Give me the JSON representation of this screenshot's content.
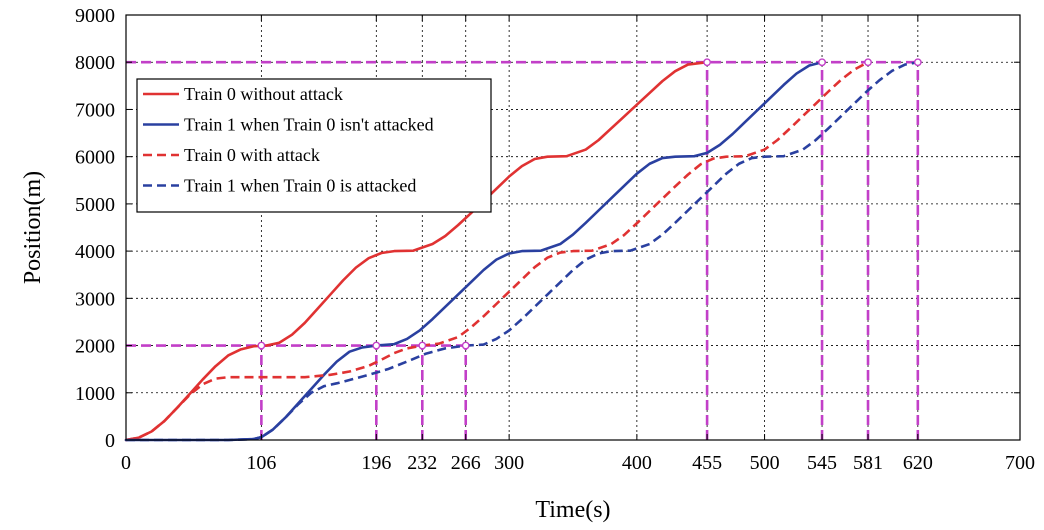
{
  "chart_data": {
    "type": "line",
    "xlabel": "Time(s)",
    "ylabel": "Position(m)",
    "xlim": [
      0,
      700
    ],
    "ylim": [
      0,
      9000
    ],
    "xticks": [
      0,
      106,
      196,
      232,
      266,
      300,
      400,
      455,
      500,
      545,
      581,
      620,
      700
    ],
    "yticks": [
      0,
      1000,
      2000,
      3000,
      4000,
      5000,
      6000,
      7000,
      8000,
      9000
    ],
    "grid_vertical": [
      106,
      196,
      232,
      266,
      300,
      400,
      455,
      500,
      545,
      581,
      620
    ],
    "grid_horizontal": [
      1000,
      2000,
      3000,
      4000,
      5000,
      6000,
      7000,
      8000
    ],
    "legend_position": "top-left",
    "reference_lines": {
      "color": "#c23fc8",
      "horizontal": [
        {
          "y": 2000,
          "x_to": 266
        },
        {
          "y": 8000,
          "x_to": 620
        }
      ],
      "vertical": [
        {
          "x": 106,
          "y_to": 2000
        },
        {
          "x": 196,
          "y_to": 2000
        },
        {
          "x": 232,
          "y_to": 2000
        },
        {
          "x": 266,
          "y_to": 2000
        },
        {
          "x": 455,
          "y_to": 8000
        },
        {
          "x": 545,
          "y_to": 8000
        },
        {
          "x": 581,
          "y_to": 8000
        },
        {
          "x": 620,
          "y_to": 8000
        }
      ],
      "markers": [
        [
          106,
          2000
        ],
        [
          196,
          2000
        ],
        [
          232,
          2000
        ],
        [
          266,
          2000
        ],
        [
          455,
          8000
        ],
        [
          545,
          8000
        ],
        [
          581,
          8000
        ],
        [
          620,
          8000
        ]
      ]
    },
    "series": [
      {
        "name": "Train 0 without attack",
        "color": "#e03232",
        "dash": "solid",
        "points": [
          [
            0,
            0
          ],
          [
            10,
            50
          ],
          [
            20,
            180
          ],
          [
            30,
            400
          ],
          [
            40,
            680
          ],
          [
            50,
            980
          ],
          [
            60,
            1280
          ],
          [
            70,
            1560
          ],
          [
            80,
            1790
          ],
          [
            90,
            1920
          ],
          [
            100,
            1985
          ],
          [
            110,
            2000
          ],
          [
            120,
            2060
          ],
          [
            130,
            2230
          ],
          [
            140,
            2480
          ],
          [
            150,
            2780
          ],
          [
            160,
            3080
          ],
          [
            170,
            3380
          ],
          [
            180,
            3650
          ],
          [
            190,
            3850
          ],
          [
            200,
            3960
          ],
          [
            210,
            4000
          ],
          [
            225,
            4010
          ],
          [
            240,
            4150
          ],
          [
            250,
            4320
          ],
          [
            260,
            4550
          ],
          [
            270,
            4800
          ],
          [
            280,
            5060
          ],
          [
            290,
            5320
          ],
          [
            300,
            5580
          ],
          [
            310,
            5800
          ],
          [
            320,
            5950
          ],
          [
            330,
            6000
          ],
          [
            345,
            6010
          ],
          [
            360,
            6150
          ],
          [
            370,
            6350
          ],
          [
            380,
            6600
          ],
          [
            390,
            6850
          ],
          [
            400,
            7100
          ],
          [
            410,
            7350
          ],
          [
            420,
            7600
          ],
          [
            430,
            7810
          ],
          [
            440,
            7950
          ],
          [
            455,
            8000
          ]
        ]
      },
      {
        "name": "Train 1 when Train 0 isn't attacked",
        "color": "#2a40a0",
        "dash": "solid",
        "points": [
          [
            0,
            0
          ],
          [
            80,
            0
          ],
          [
            100,
            20
          ],
          [
            106,
            60
          ],
          [
            115,
            220
          ],
          [
            125,
            480
          ],
          [
            135,
            780
          ],
          [
            145,
            1080
          ],
          [
            155,
            1380
          ],
          [
            165,
            1660
          ],
          [
            175,
            1870
          ],
          [
            185,
            1960
          ],
          [
            196,
            2000
          ],
          [
            210,
            2030
          ],
          [
            220,
            2140
          ],
          [
            230,
            2320
          ],
          [
            240,
            2560
          ],
          [
            250,
            2820
          ],
          [
            260,
            3080
          ],
          [
            270,
            3340
          ],
          [
            280,
            3600
          ],
          [
            290,
            3820
          ],
          [
            300,
            3950
          ],
          [
            310,
            4000
          ],
          [
            325,
            4010
          ],
          [
            340,
            4150
          ],
          [
            350,
            4350
          ],
          [
            360,
            4600
          ],
          [
            370,
            4860
          ],
          [
            380,
            5120
          ],
          [
            390,
            5380
          ],
          [
            400,
            5640
          ],
          [
            410,
            5850
          ],
          [
            420,
            5970
          ],
          [
            430,
            6000
          ],
          [
            445,
            6010
          ],
          [
            455,
            6080
          ],
          [
            465,
            6250
          ],
          [
            475,
            6480
          ],
          [
            485,
            6740
          ],
          [
            495,
            7000
          ],
          [
            505,
            7260
          ],
          [
            515,
            7520
          ],
          [
            525,
            7760
          ],
          [
            535,
            7930
          ],
          [
            545,
            8000
          ]
        ]
      },
      {
        "name": "Train 0 with attack",
        "color": "#e03232",
        "dash": "dashed",
        "points": [
          [
            0,
            0
          ],
          [
            10,
            50
          ],
          [
            20,
            180
          ],
          [
            30,
            400
          ],
          [
            40,
            680
          ],
          [
            50,
            960
          ],
          [
            60,
            1180
          ],
          [
            70,
            1300
          ],
          [
            80,
            1330
          ],
          [
            140,
            1330
          ],
          [
            160,
            1380
          ],
          [
            175,
            1450
          ],
          [
            190,
            1570
          ],
          [
            200,
            1700
          ],
          [
            210,
            1840
          ],
          [
            220,
            1940
          ],
          [
            232,
            2000
          ],
          [
            245,
            2040
          ],
          [
            260,
            2180
          ],
          [
            270,
            2380
          ],
          [
            280,
            2620
          ],
          [
            290,
            2880
          ],
          [
            300,
            3140
          ],
          [
            310,
            3400
          ],
          [
            320,
            3660
          ],
          [
            330,
            3860
          ],
          [
            340,
            3970
          ],
          [
            350,
            4000
          ],
          [
            365,
            4010
          ],
          [
            380,
            4150
          ],
          [
            390,
            4340
          ],
          [
            400,
            4590
          ],
          [
            410,
            4850
          ],
          [
            420,
            5110
          ],
          [
            430,
            5370
          ],
          [
            440,
            5620
          ],
          [
            450,
            5840
          ],
          [
            460,
            5960
          ],
          [
            470,
            6000
          ],
          [
            485,
            6010
          ],
          [
            500,
            6150
          ],
          [
            510,
            6350
          ],
          [
            520,
            6600
          ],
          [
            530,
            6860
          ],
          [
            540,
            7120
          ],
          [
            550,
            7380
          ],
          [
            560,
            7630
          ],
          [
            570,
            7840
          ],
          [
            581,
            8000
          ]
        ]
      },
      {
        "name": "Train 1 when Train 0 is attacked",
        "color": "#2a40a0",
        "dash": "dashed",
        "points": [
          [
            0,
            0
          ],
          [
            80,
            0
          ],
          [
            100,
            20
          ],
          [
            106,
            60
          ],
          [
            115,
            220
          ],
          [
            125,
            480
          ],
          [
            135,
            760
          ],
          [
            145,
            1000
          ],
          [
            155,
            1140
          ],
          [
            165,
            1200
          ],
          [
            175,
            1270
          ],
          [
            190,
            1380
          ],
          [
            205,
            1500
          ],
          [
            220,
            1660
          ],
          [
            235,
            1830
          ],
          [
            250,
            1940
          ],
          [
            266,
            2000
          ],
          [
            280,
            2020
          ],
          [
            290,
            2140
          ],
          [
            300,
            2320
          ],
          [
            310,
            2560
          ],
          [
            320,
            2820
          ],
          [
            330,
            3080
          ],
          [
            340,
            3340
          ],
          [
            350,
            3600
          ],
          [
            360,
            3820
          ],
          [
            370,
            3950
          ],
          [
            380,
            4000
          ],
          [
            395,
            4010
          ],
          [
            410,
            4150
          ],
          [
            420,
            4350
          ],
          [
            430,
            4600
          ],
          [
            440,
            4860
          ],
          [
            450,
            5120
          ],
          [
            460,
            5380
          ],
          [
            470,
            5640
          ],
          [
            480,
            5850
          ],
          [
            490,
            5970
          ],
          [
            500,
            6000
          ],
          [
            515,
            6010
          ],
          [
            530,
            6150
          ],
          [
            540,
            6350
          ],
          [
            550,
            6600
          ],
          [
            560,
            6860
          ],
          [
            570,
            7120
          ],
          [
            580,
            7380
          ],
          [
            590,
            7620
          ],
          [
            600,
            7820
          ],
          [
            610,
            7950
          ],
          [
            620,
            8000
          ]
        ]
      }
    ]
  }
}
